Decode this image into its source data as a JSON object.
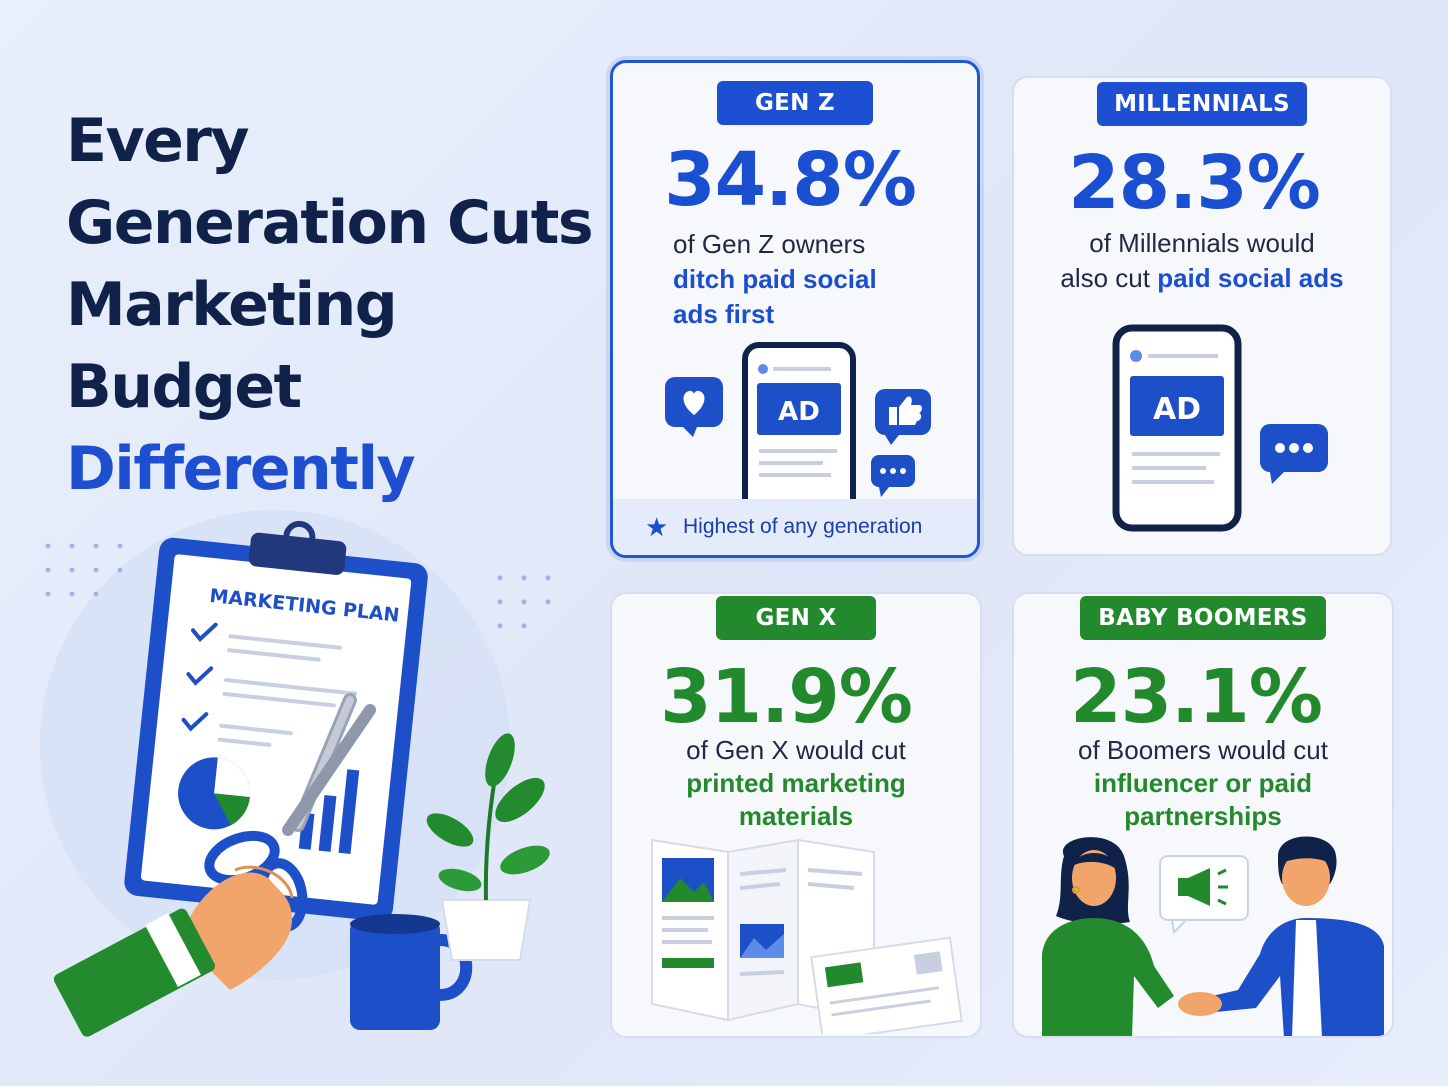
{
  "headline": {
    "line1": "Every",
    "line2": "Generation Cuts",
    "line3": "Marketing",
    "line4": "Budget",
    "highlight": "Differently"
  },
  "illustration": {
    "clipboard_title": "MARKETING PLAN"
  },
  "cards": {
    "genz": {
      "badge": "GEN Z",
      "stat": "34.8%",
      "desc_plain": "of Gen Z owners",
      "desc_emphasis_1": "ditch paid social",
      "desc_emphasis_2": "ads first",
      "ad_label": "AD",
      "footnote": "Highest of any generation"
    },
    "millennials": {
      "badge": "MILLENNIALS",
      "stat": "28.3%",
      "desc_plain_1": "of Millennials would",
      "desc_plain_2": "also cut ",
      "desc_emphasis": "paid social ads",
      "ad_label": "AD"
    },
    "genx": {
      "badge": "GEN X",
      "stat": "31.9%",
      "desc_plain": "of Gen X would cut",
      "desc_emphasis_1": "printed marketing",
      "desc_emphasis_2": "materials"
    },
    "boomers": {
      "badge": "BABY BOOMERS",
      "stat": "23.1%",
      "desc_plain": "of Boomers would cut",
      "desc_emphasis_1": "influencer or paid",
      "desc_emphasis_2": "partnerships"
    }
  },
  "colors": {
    "blue": "#1b4fd1",
    "green": "#228a2c",
    "navy": "#10224a",
    "background": "#e4ebf9"
  },
  "icons": [
    "heart-icon",
    "thumbs-up-icon",
    "chat-bubble-icon",
    "star-icon",
    "megaphone-icon",
    "checkmark-icon",
    "scissors-icon"
  ]
}
